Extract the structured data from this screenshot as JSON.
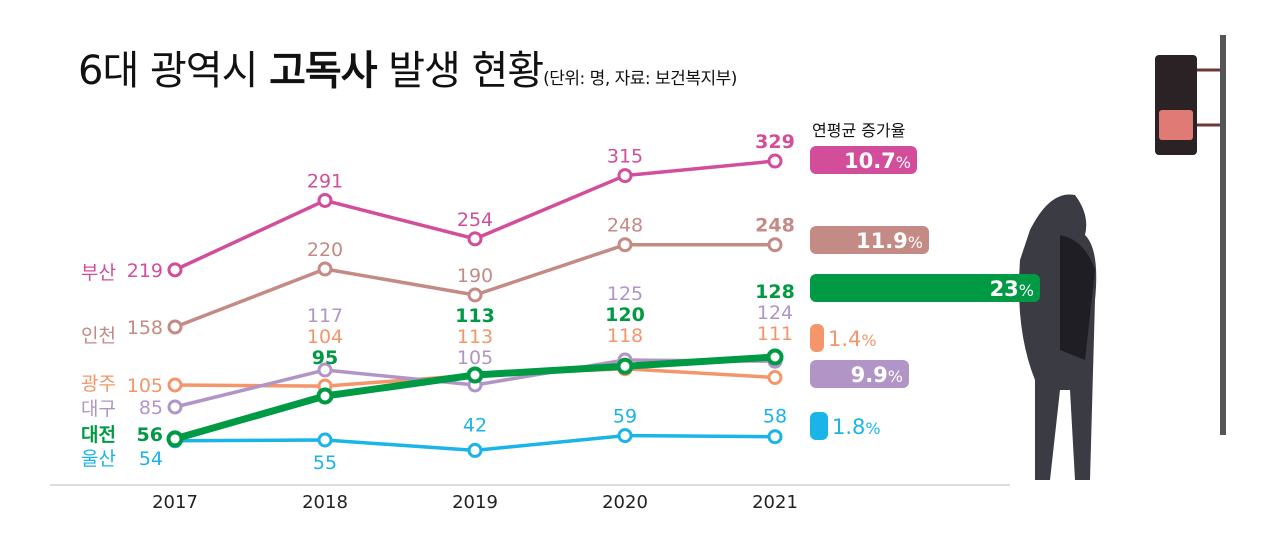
{
  "chart_data": {
    "type": "line",
    "title_parts": {
      "prefix": "6대 광역시 ",
      "bold": "고독사",
      "suffix": " 발생 현황",
      "subtitle": "(단위: 명, 자료: 보건복지부)"
    },
    "categories": [
      "2017",
      "2018",
      "2019",
      "2020",
      "2021"
    ],
    "series": [
      {
        "name": "부산",
        "values": [
          219,
          291,
          254,
          315,
          329
        ],
        "color": "#d24e9b",
        "growth": "10.7",
        "growth_value": 10.7
      },
      {
        "name": "인천",
        "values": [
          158,
          220,
          190,
          248,
          248
        ],
        "color": "#c48a85",
        "growth": "11.9",
        "growth_value": 11.9
      },
      {
        "name": "광주",
        "values": [
          105,
          104,
          113,
          118,
          111
        ],
        "color": "#f4956a",
        "growth": "1.4",
        "growth_value": 1.4
      },
      {
        "name": "대구",
        "values": [
          85,
          117,
          105,
          125,
          124
        ],
        "color": "#b095c6",
        "growth": "9.9",
        "growth_value": 9.9
      },
      {
        "name": "대전",
        "values": [
          56,
          95,
          113,
          120,
          128
        ],
        "color": "#009a44",
        "growth": "23",
        "growth_value": 23,
        "highlighted": true
      },
      {
        "name": "울산",
        "values": [
          54,
          55,
          42,
          59,
          58
        ],
        "color": "#1ab4e8",
        "growth": "1.8",
        "growth_value": 1.8
      }
    ],
    "growth_header": "연평균 증가율",
    "percent_sign": "%",
    "grid": false,
    "legend": "left (inline series labels)"
  }
}
